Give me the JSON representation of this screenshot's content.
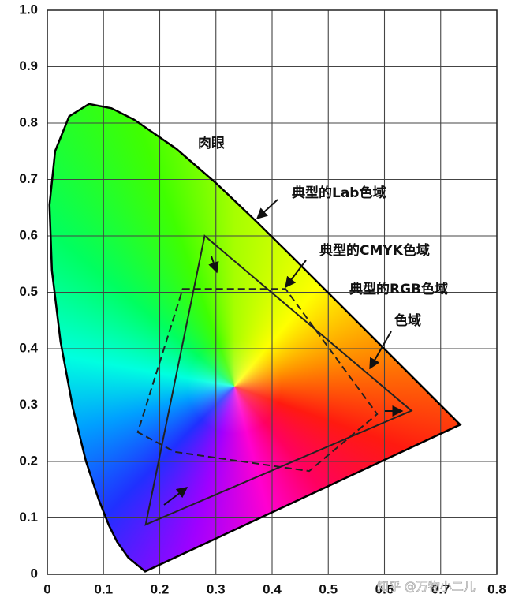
{
  "chart_data": {
    "type": "chromaticity",
    "xlim": [
      0,
      0.8
    ],
    "ylim": [
      0,
      1
    ],
    "xticks": [
      0,
      0.1,
      0.2,
      0.3,
      0.4,
      0.5,
      0.6,
      0.7,
      0.8
    ],
    "yticks": [
      0,
      0.1,
      0.2,
      0.3,
      0.4,
      0.5,
      0.6,
      0.7,
      0.8,
      0.9,
      {
        "value": 1,
        "label": "1.0"
      }
    ],
    "grid": true,
    "locus": {
      "x": [
        0.1741,
        0.144,
        0.1241,
        0.1096,
        0.0913,
        0.0687,
        0.0454,
        0.0235,
        0.0082,
        0.0039,
        0.0139,
        0.0389,
        0.0743,
        0.1142,
        0.1547,
        0.2296,
        0.3016,
        0.3731,
        0.4441,
        0.5125,
        0.5752,
        0.627,
        0.6915,
        0.719,
        0.7347
      ],
      "y": [
        0.005,
        0.0297,
        0.0578,
        0.0868,
        0.1327,
        0.2007,
        0.295,
        0.4127,
        0.5384,
        0.6548,
        0.7502,
        0.812,
        0.8338,
        0.8262,
        0.8059,
        0.7543,
        0.6923,
        0.6245,
        0.5547,
        0.4866,
        0.4242,
        0.3725,
        0.3083,
        0.2809,
        0.2653
      ]
    },
    "series": [
      {
        "x": [
          0.28,
          0.648,
          0.175
        ],
        "values": [
          0.6,
          0.29,
          0.088
        ],
        "dash": false
      },
      {
        "x": [
          0.241,
          0.424,
          0.587,
          0.466,
          0.227,
          0.161
        ],
        "values": [
          0.506,
          0.506,
          0.284,
          0.183,
          0.217,
          0.252
        ],
        "dash": true
      }
    ],
    "annotations": [
      "肉眼",
      "典型的Lab色域",
      "典型的CMYK色域",
      "典型的RGB色域",
      "色域",
      "知乎 @万物小二儿"
    ]
  }
}
